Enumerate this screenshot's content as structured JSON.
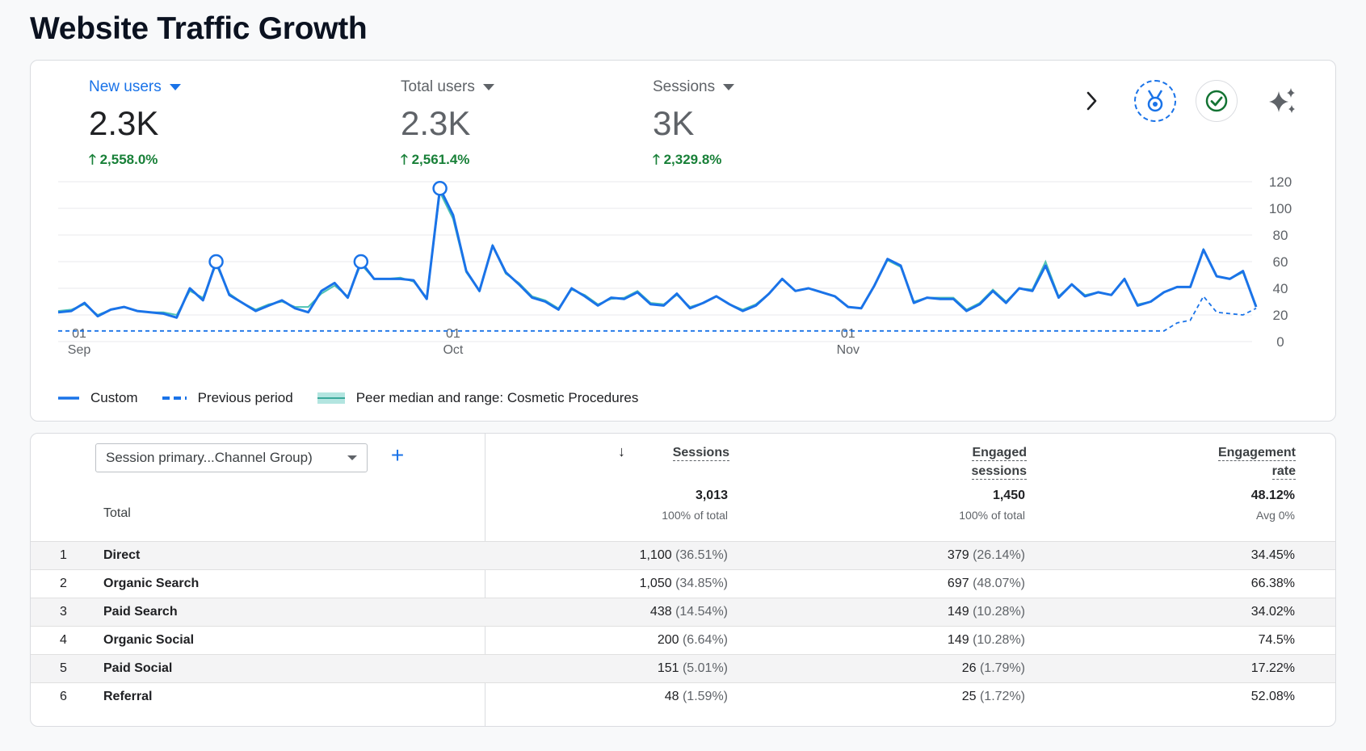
{
  "page": {
    "title": "Website Traffic Growth"
  },
  "metrics": [
    {
      "label": "New users",
      "value": "2.3K",
      "delta": "2,558.0%",
      "active": true
    },
    {
      "label": "Total users",
      "value": "2.3K",
      "delta": "2,561.4%",
      "active": false
    },
    {
      "label": "Sessions",
      "value": "3K",
      "delta": "2,329.8%",
      "active": false
    }
  ],
  "toolbar": {
    "next_icon": "chevron-right-icon",
    "badge_icon": "medal-icon",
    "check_icon": "check-circle-icon",
    "insights_icon": "sparkle-icon"
  },
  "legend": {
    "custom": "Custom",
    "previous": "Previous period",
    "peer": "Peer median and range: Cosmetic Procedures"
  },
  "colors": {
    "primary": "#1a73e8",
    "peer": "#4ec3b3",
    "positive": "#188038"
  },
  "chart_data": {
    "type": "line",
    "ylim": [
      0,
      120
    ],
    "yticks": [
      0,
      20,
      40,
      60,
      80,
      100,
      120
    ],
    "xticks": [
      {
        "day": "01",
        "month": "Sep"
      },
      {
        "day": "01",
        "month": "Oct"
      },
      {
        "day": "01",
        "month": "Nov"
      }
    ],
    "series": [
      {
        "name": "Custom",
        "values": [
          22,
          23,
          29,
          19,
          24,
          26,
          23,
          22,
          21,
          18,
          40,
          31,
          60,
          35,
          29,
          23,
          27,
          31,
          25,
          22,
          38,
          44,
          33,
          60,
          47,
          47,
          47,
          46,
          32,
          115,
          95,
          53,
          38,
          72,
          52,
          43,
          33,
          30,
          24,
          40,
          34,
          27,
          33,
          32,
          37,
          28,
          27,
          36,
          25,
          29,
          34,
          28,
          23,
          27,
          36,
          47,
          38,
          40,
          37,
          34,
          26,
          25,
          42,
          62,
          57,
          29,
          33,
          32,
          32,
          23,
          28,
          38,
          29,
          40,
          38,
          57,
          33,
          43,
          34,
          37,
          35,
          47,
          27,
          30,
          37,
          41,
          41,
          69,
          49,
          47,
          53,
          26
        ]
      },
      {
        "name": "Previous period",
        "values": [
          8,
          8,
          8,
          8,
          8,
          8,
          8,
          8,
          8,
          8,
          8,
          8,
          8,
          8,
          8,
          8,
          8,
          8,
          8,
          8,
          8,
          8,
          8,
          8,
          8,
          8,
          8,
          8,
          8,
          8,
          8,
          8,
          8,
          8,
          8,
          8,
          8,
          8,
          8,
          8,
          8,
          8,
          8,
          8,
          8,
          8,
          8,
          8,
          8,
          8,
          8,
          8,
          8,
          8,
          8,
          8,
          8,
          8,
          8,
          8,
          8,
          8,
          8,
          8,
          8,
          8,
          8,
          8,
          8,
          8,
          8,
          8,
          8,
          8,
          8,
          8,
          8,
          8,
          8,
          8,
          8,
          8,
          8,
          8,
          8,
          14,
          16,
          34,
          22,
          21,
          20,
          25
        ]
      },
      {
        "name": "Peer median and range: Cosmetic Procedures",
        "values": [
          23,
          24,
          28,
          20,
          24,
          26,
          23,
          22,
          22,
          20,
          38,
          33,
          58,
          36,
          29,
          24,
          28,
          30,
          26,
          26,
          36,
          42,
          34,
          58,
          47,
          47,
          48,
          45,
          33,
          112,
          92,
          52,
          38,
          72,
          51,
          44,
          34,
          31,
          25,
          39,
          35,
          28,
          32,
          33,
          38,
          29,
          28,
          35,
          26,
          29,
          34,
          28,
          24,
          28,
          36,
          47,
          38,
          40,
          37,
          34,
          26,
          25,
          42,
          61,
          56,
          30,
          33,
          33,
          33,
          24,
          29,
          39,
          30,
          40,
          39,
          60,
          34,
          43,
          35,
          37,
          35,
          47,
          28,
          30,
          37,
          41,
          41,
          69,
          49,
          47,
          52,
          27
        ]
      }
    ],
    "highlight_points": [
      12,
      23,
      29
    ]
  },
  "table": {
    "dimension": "Session primary...Channel Group)",
    "add_label": "+",
    "sort_icon": "↓",
    "headers": {
      "sessions": "Sessions",
      "engaged_line1": "Engaged",
      "engaged_line2": "sessions",
      "rate_line1": "Engagement",
      "rate_line2": "rate"
    },
    "total": {
      "label": "Total",
      "sessions": "3,013",
      "sessions_sub": "100% of total",
      "engaged": "1,450",
      "engaged_sub": "100% of total",
      "rate": "48.12%",
      "rate_sub": "Avg 0%"
    },
    "rows": [
      {
        "idx": "1",
        "name": "Direct",
        "sessions": "1,100",
        "sessions_pct": "(36.51%)",
        "engaged": "379",
        "engaged_pct": "(26.14%)",
        "rate": "34.45%"
      },
      {
        "idx": "2",
        "name": "Organic Search",
        "sessions": "1,050",
        "sessions_pct": "(34.85%)",
        "engaged": "697",
        "engaged_pct": "(48.07%)",
        "rate": "66.38%"
      },
      {
        "idx": "3",
        "name": "Paid Search",
        "sessions": "438",
        "sessions_pct": "(14.54%)",
        "engaged": "149",
        "engaged_pct": "(10.28%)",
        "rate": "34.02%"
      },
      {
        "idx": "4",
        "name": "Organic Social",
        "sessions": "200",
        "sessions_pct": "(6.64%)",
        "engaged": "149",
        "engaged_pct": "(10.28%)",
        "rate": "74.5%"
      },
      {
        "idx": "5",
        "name": "Paid Social",
        "sessions": "151",
        "sessions_pct": "(5.01%)",
        "engaged": "26",
        "engaged_pct": "(1.79%)",
        "rate": "17.22%"
      },
      {
        "idx": "6",
        "name": "Referral",
        "sessions": "48",
        "sessions_pct": "(1.59%)",
        "engaged": "25",
        "engaged_pct": "(1.72%)",
        "rate": "52.08%"
      }
    ]
  }
}
